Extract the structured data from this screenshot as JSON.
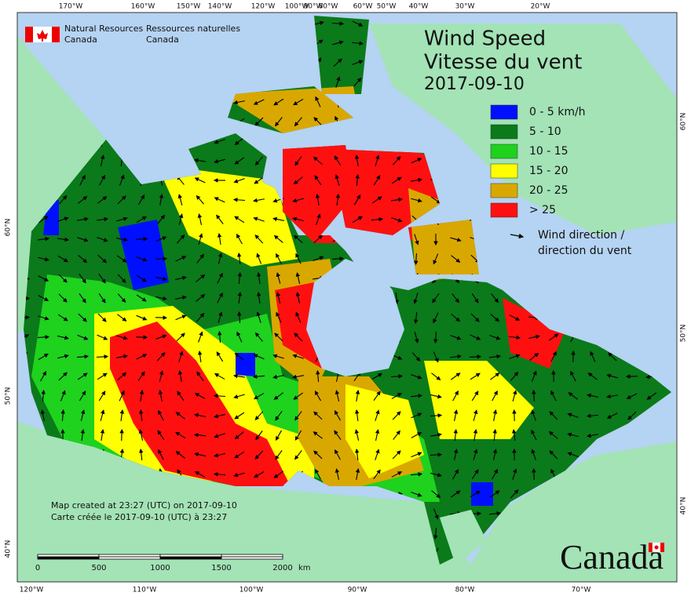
{
  "header": {
    "org_en": [
      "Natural Resources",
      "Canada"
    ],
    "org_fr": [
      "Ressources naturelles",
      "Canada"
    ]
  },
  "title": [
    "Wind Speed",
    "Vitesse du vent"
  ],
  "date": "2017-09-10",
  "legend": {
    "items": [
      {
        "label": "0 - 5 km/h",
        "color": "#0010ff"
      },
      {
        "label": "5 - 10",
        "color": "#0b7a1a"
      },
      {
        "label": "10 - 15",
        "color": "#1ed21e"
      },
      {
        "label": "15 - 20",
        "color": "#ffff00"
      },
      {
        "label": "20 - 25",
        "color": "#d9a800"
      },
      {
        "label": "> 25",
        "color": "#ff1010"
      }
    ],
    "arrow_label": [
      "Wind direction /",
      "direction du vent"
    ]
  },
  "graticule": {
    "top": [
      "170°W",
      "160°W",
      "150°W",
      "140°W",
      "120°W",
      "100°W",
      "90°W",
      "80°W",
      "60°W",
      "50°W",
      "40°W",
      "30°W",
      "20°W"
    ],
    "bottom": [
      "120°W",
      "110°W",
      "100°W",
      "90°W",
      "80°W",
      "70°W"
    ],
    "left": [
      "60°N",
      "50°N",
      "40°N"
    ],
    "right": [
      "60°N",
      "50°N",
      "40°N"
    ]
  },
  "note": [
    "Map created at 23:27 (UTC) on 2017-09-10",
    "Carte créée le 2017-09-10 (UTC) à 23:27"
  ],
  "scale": {
    "ticks": [
      0,
      500,
      1000,
      1500,
      2000
    ],
    "unit": "km"
  },
  "wordmark": "Canada"
}
